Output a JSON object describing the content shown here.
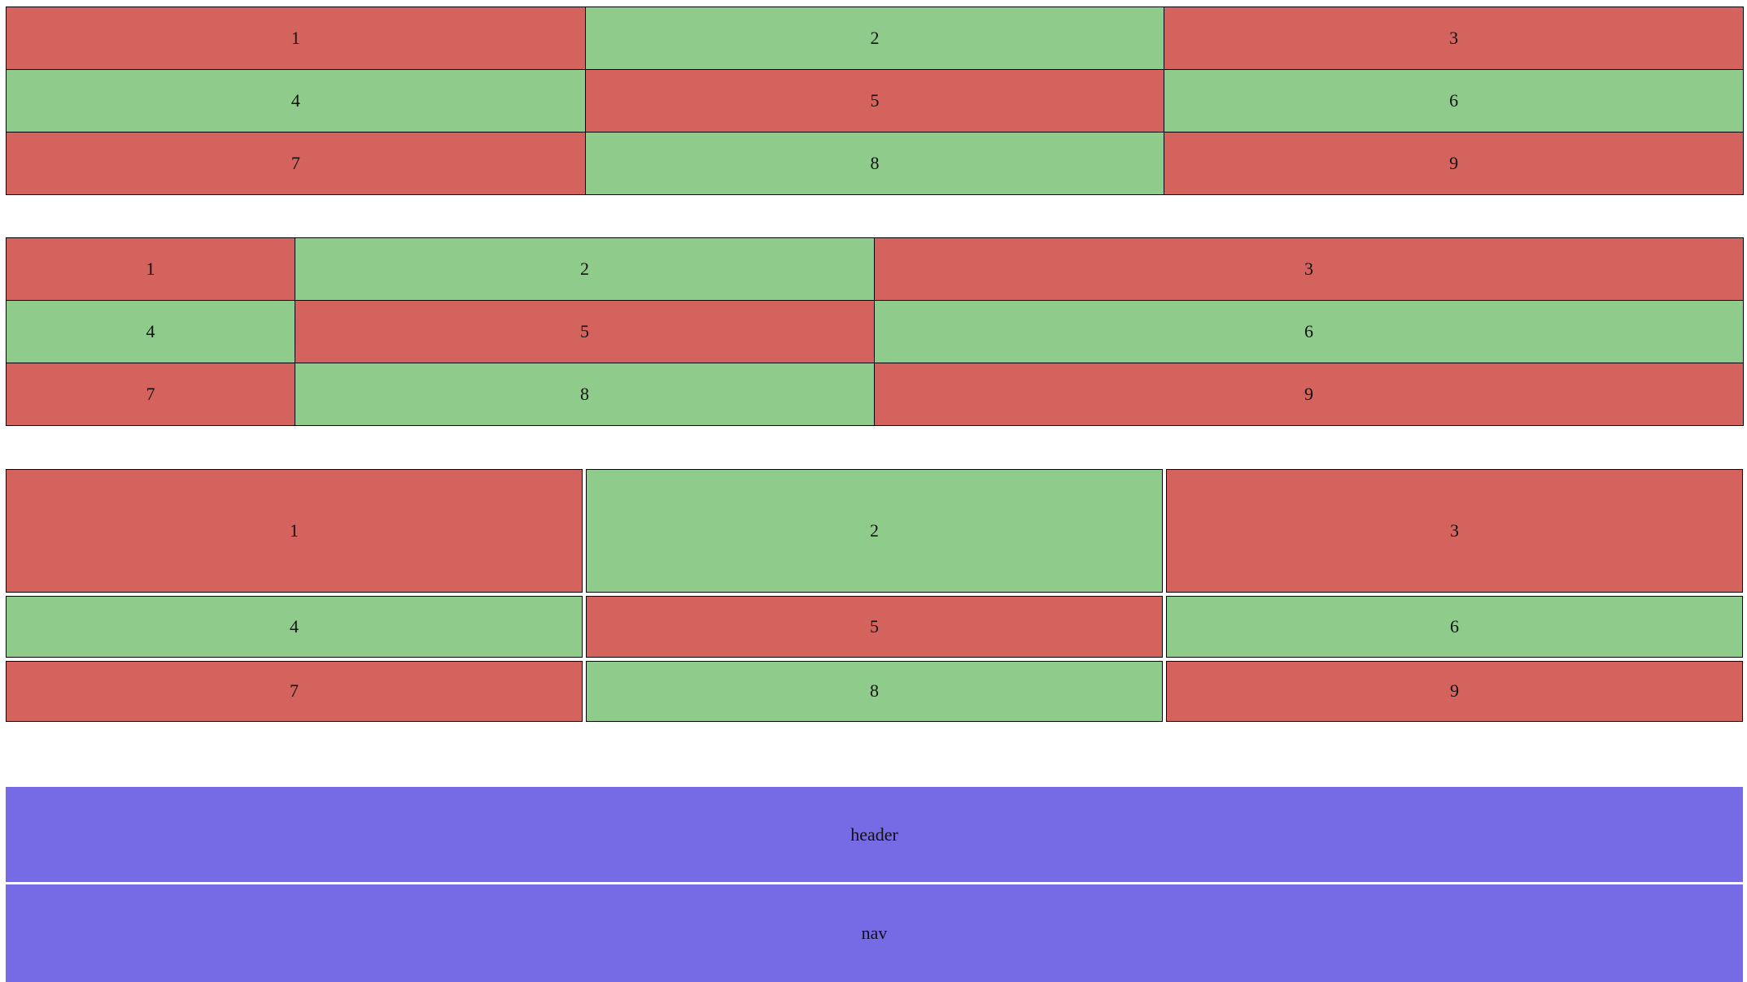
{
  "grid1": {
    "cells": [
      "1",
      "2",
      "3",
      "4",
      "5",
      "6",
      "7",
      "8",
      "9"
    ]
  },
  "grid2": {
    "cells": [
      "1",
      "2",
      "3",
      "4",
      "5",
      "6",
      "7",
      "8",
      "9"
    ]
  },
  "grid3": {
    "cells": [
      "1",
      "2",
      "3",
      "4",
      "5",
      "6",
      "7",
      "8",
      "9"
    ]
  },
  "layout": {
    "header": "header",
    "nav": "nav"
  },
  "colors": {
    "red": "#d4625d",
    "green": "#8fcb8a",
    "purple": "#776ae5"
  }
}
